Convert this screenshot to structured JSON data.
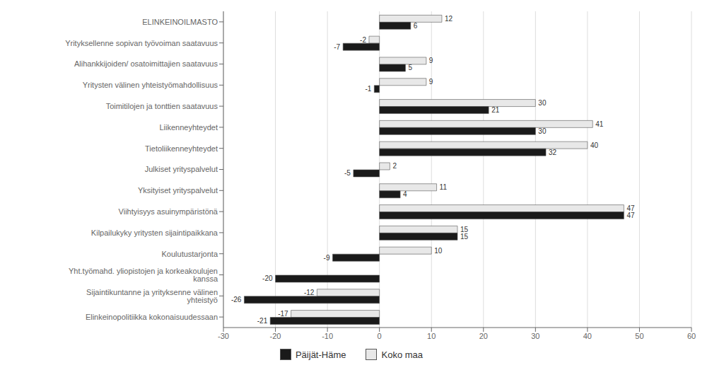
{
  "chart_data": {
    "type": "bar",
    "orientation": "horizontal",
    "categories": [
      "ELINKEINOILMASTO",
      "Yrityksellenne sopivan työvoiman saatavuus",
      "Alihankkijoiden/ osatoimittajien saatavuus",
      "Yritysten välinen yhteistyömahdollisuus",
      "Toimitilojen ja tonttien saatavuus",
      "Liikenneyhteydet",
      "Tietoliikenneyhteydet",
      "Julkiset yrityspalvelut",
      "Yksityiset yrityspalvelut",
      "Viihtyisyys asuinympäristönä",
      "Kilpailukyky yritysten sijaintipaikkana",
      "Koulutustarjonta",
      "Yht.työmahd. yliopistojen ja korkeakoulujen kanssa",
      "Sijaintikuntanne ja yrityksenne välinen yhteistyö",
      "Elinkeinopolitiikka kokonaisuudessaan"
    ],
    "series": [
      {
        "name": "Päijät-Häme",
        "color": "#1a1a1a",
        "values": [
          6,
          -7,
          5,
          -1,
          21,
          30,
          32,
          -5,
          4,
          47,
          15,
          -9,
          -20,
          -26,
          -21
        ]
      },
      {
        "name": "Koko maa",
        "color": "#e8e8e8",
        "values": [
          12,
          -2,
          9,
          9,
          30,
          41,
          40,
          2,
          11,
          47,
          15,
          10,
          0,
          -12,
          -17
        ]
      }
    ],
    "xlim": [
      -30,
      60
    ],
    "xticks": [
      -30,
      -20,
      -10,
      0,
      10,
      20,
      30,
      40,
      50,
      60
    ],
    "grid": true,
    "legend": "bottom",
    "data_labels": true
  }
}
